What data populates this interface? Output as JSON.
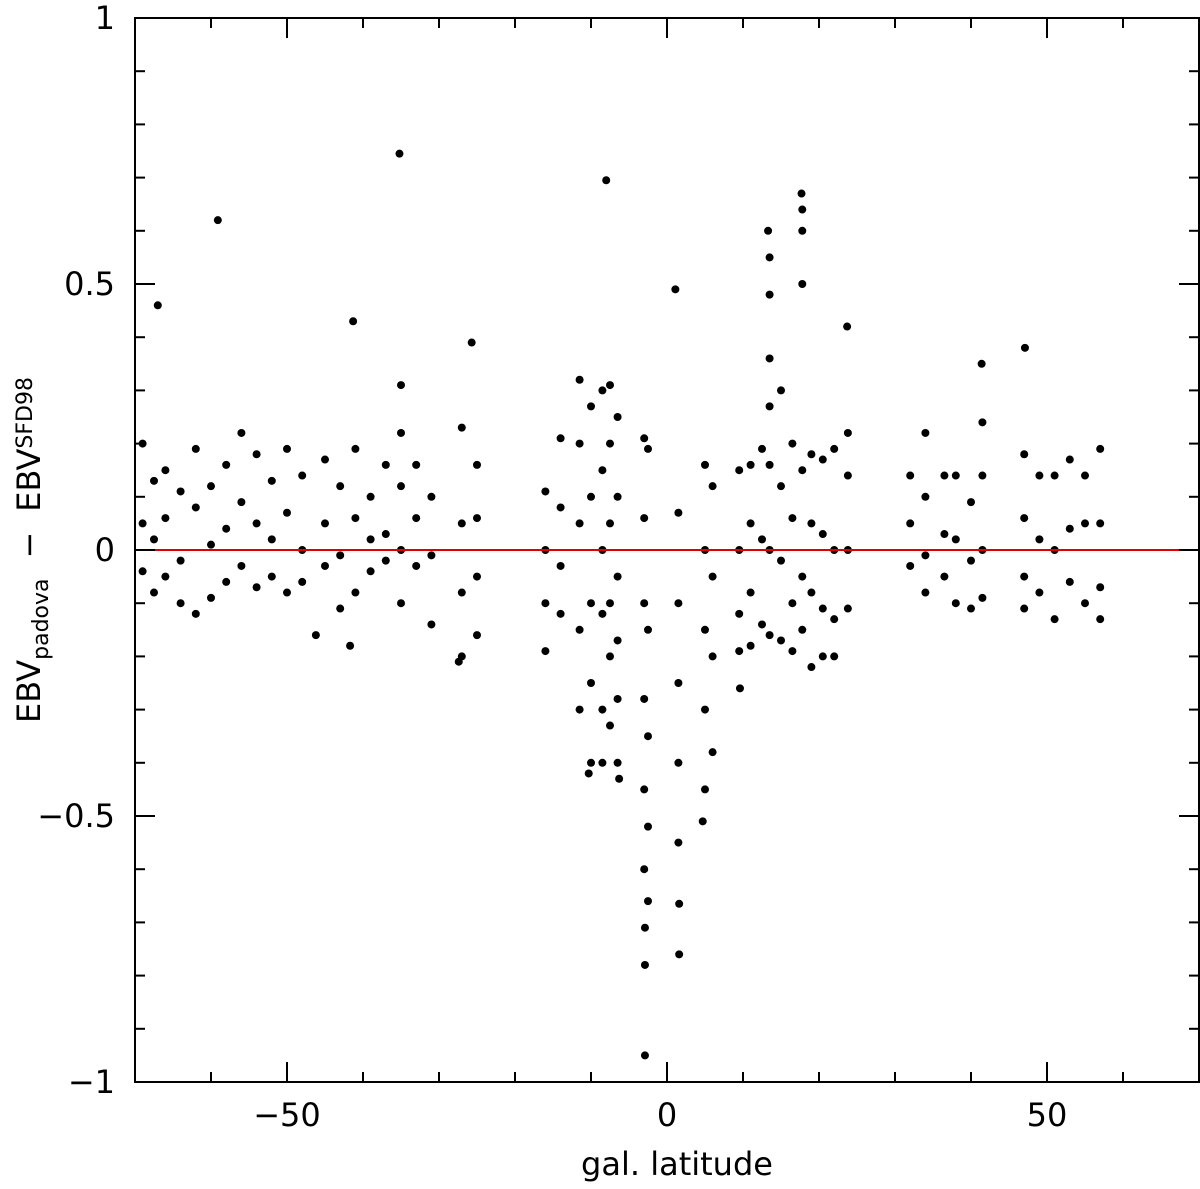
{
  "chart_data": {
    "type": "scatter",
    "xlabel": "gal. latitude",
    "ylabel": [
      "EBV",
      "padova",
      "−",
      "EBV",
      "SFD98"
    ],
    "xlim": [
      -70,
      70
    ],
    "ylim": [
      -1,
      1
    ],
    "xticks": [
      {
        "value": -50,
        "label": "−50"
      },
      0,
      50
    ],
    "yticks": [
      {
        "value": -1,
        "label": "−1"
      },
      {
        "value": -0.5,
        "label": "−0.5"
      },
      0,
      0.5,
      1
    ],
    "xminorticks": [
      -70,
      -60,
      -40,
      -30,
      -20,
      -10,
      10,
      20,
      30,
      40,
      60,
      70
    ],
    "yminorticks": [
      -0.9,
      -0.8,
      -0.7,
      -0.6,
      -0.4,
      -0.3,
      -0.2,
      -0.1,
      0.1,
      0.2,
      0.3,
      0.4,
      0.6,
      0.7,
      0.8,
      0.9
    ],
    "color": "#000000",
    "hline": {
      "value": 0,
      "color": "#e00000"
    },
    "x": [
      -69,
      -69,
      -69,
      -67.5,
      -67.5,
      -67.5,
      -66,
      -66,
      -66,
      -64,
      -64,
      -64,
      -62,
      -62,
      -62,
      -60,
      -60,
      -60,
      -58,
      -58,
      -58,
      -56,
      -56,
      -56,
      -54,
      -54,
      -54,
      -52,
      -52,
      -52,
      -50,
      -50,
      -50,
      -48,
      -48,
      -48,
      -45,
      -45,
      -45,
      -43,
      -43,
      -43,
      -41,
      -41,
      -41,
      -39,
      -39,
      -39,
      -37,
      -37,
      -37,
      -35,
      -35,
      -35,
      -35,
      -35,
      -33,
      -33,
      -33,
      -31,
      -31,
      -31,
      -27,
      -27,
      -27,
      -27,
      -25,
      -25,
      -25,
      -25,
      -16,
      -16,
      -16,
      -16,
      -14,
      -14,
      -14,
      -14,
      -11.5,
      -11.5,
      -11.5,
      -11.5,
      -11.5,
      -10,
      -10,
      -10,
      -10,
      -10,
      -8.5,
      -8.5,
      -8.5,
      -8.5,
      -8.5,
      -8.5,
      -7.5,
      -7.5,
      -7.5,
      -7.5,
      -7.5,
      -7.5,
      -6.5,
      -6.5,
      -6.5,
      -6.5,
      -6.5,
      -6.5,
      -3,
      -3,
      -3,
      -3,
      -3,
      -3,
      -2.5,
      -2.5,
      -2.5,
      -2.5,
      -2.5,
      1.5,
      1.5,
      1.5,
      1.5,
      1.5,
      5,
      5,
      5,
      5,
      5,
      6,
      6,
      6,
      6,
      9.5,
      9.5,
      9.5,
      9.5,
      11,
      11,
      11,
      11,
      12.5,
      12.5,
      12.5,
      13.5,
      13.5,
      13.5,
      13.5,
      13.5,
      13.5,
      13.5,
      15,
      15,
      15,
      15,
      16.5,
      16.5,
      16.5,
      16.5,
      17.8,
      17.8,
      17.8,
      17.8,
      17.8,
      17.8,
      19,
      19,
      19,
      19,
      20.5,
      20.5,
      20.5,
      20.5,
      22,
      22,
      22,
      22,
      23.8,
      23.8,
      23.8,
      23.8,
      32,
      32,
      32,
      34,
      34,
      34,
      34,
      36.5,
      36.5,
      36.5,
      38,
      38,
      38,
      40,
      40,
      40,
      41.5,
      41.5,
      41.5,
      41.5,
      47,
      47,
      47,
      47,
      49,
      49,
      49,
      51,
      51,
      51,
      53,
      53,
      53,
      55,
      55,
      55,
      57,
      57,
      57,
      57,
      -8,
      13.3,
      17.7,
      1.1,
      23.7,
      41.4,
      47.1,
      -35.2,
      -59.1,
      -67,
      -41.3,
      -25.7,
      -2.9,
      -2.9,
      1.6,
      1.6,
      -2.9,
      9.6,
      -10.3,
      -6.3,
      4.7,
      -41.7,
      -46.2,
      -27.4
    ],
    "y": [
      0.2,
      0.05,
      -0.04,
      0.13,
      0.02,
      -0.08,
      0.15,
      0.06,
      -0.05,
      0.11,
      -0.02,
      -0.1,
      0.19,
      0.08,
      -0.12,
      0.12,
      0.01,
      -0.09,
      0.16,
      0.04,
      -0.06,
      0.22,
      0.09,
      -0.03,
      0.18,
      0.05,
      -0.07,
      0.13,
      0.02,
      -0.05,
      0.19,
      0.07,
      -0.08,
      0.14,
      0,
      -0.06,
      0.17,
      0.05,
      -0.03,
      0.12,
      -0.01,
      -0.11,
      0.19,
      0.06,
      -0.08,
      0.1,
      0.02,
      -0.04,
      0.16,
      0.03,
      -0.02,
      0.31,
      0.22,
      0.12,
      0,
      -0.1,
      0.16,
      0.06,
      -0.03,
      0.1,
      -0.01,
      -0.14,
      0.23,
      0.05,
      -0.08,
      -0.2,
      0.16,
      0.06,
      -0.05,
      -0.16,
      0.11,
      0,
      -0.1,
      -0.19,
      0.21,
      0.08,
      -0.03,
      -0.12,
      0.32,
      0.2,
      0.05,
      -0.15,
      -0.3,
      0.27,
      0.1,
      -0.1,
      -0.25,
      -0.4,
      0.3,
      0.15,
      0,
      -0.12,
      -0.3,
      -0.4,
      0.31,
      0.2,
      0.05,
      -0.1,
      -0.2,
      -0.33,
      0.25,
      0.1,
      -0.05,
      -0.17,
      -0.28,
      -0.4,
      0.21,
      0.06,
      -0.1,
      -0.28,
      -0.45,
      -0.6,
      0.19,
      -0.15,
      -0.35,
      -0.52,
      -0.66,
      0.07,
      -0.1,
      -0.25,
      -0.4,
      -0.55,
      0.16,
      0,
      -0.15,
      -0.3,
      -0.45,
      0.12,
      -0.05,
      -0.2,
      -0.38,
      0.15,
      0,
      -0.12,
      -0.19,
      0.16,
      0.05,
      -0.08,
      -0.18,
      0.19,
      0.02,
      -0.14,
      0.55,
      0.48,
      0.36,
      0.27,
      0.16,
      0,
      -0.16,
      0.3,
      0.12,
      -0.02,
      -0.17,
      0.2,
      0.06,
      -0.1,
      -0.19,
      0.64,
      0.6,
      0.5,
      0.15,
      -0.05,
      -0.15,
      0.18,
      0.05,
      -0.08,
      -0.22,
      0.17,
      0.03,
      -0.11,
      -0.2,
      0.19,
      0,
      -0.13,
      -0.2,
      0.22,
      0.14,
      0,
      -0.11,
      0.14,
      0.05,
      -0.03,
      0.22,
      0.1,
      -0.01,
      -0.08,
      0.14,
      0.03,
      -0.05,
      0.14,
      0.02,
      -0.1,
      0.09,
      -0.02,
      -0.11,
      0.24,
      0.14,
      0,
      -0.09,
      0.18,
      0.06,
      -0.05,
      -0.11,
      0.14,
      0.02,
      -0.08,
      0.14,
      0,
      -0.13,
      0.17,
      0.04,
      -0.06,
      0.14,
      0.05,
      -0.1,
      0.19,
      0.05,
      -0.07,
      -0.13,
      0.695,
      0.6,
      0.67,
      0.49,
      0.42,
      0.35,
      0.38,
      0.745,
      0.62,
      0.46,
      0.43,
      0.39,
      -0.95,
      -0.78,
      -0.76,
      -0.665,
      -0.71,
      -0.26,
      -0.42,
      -0.43,
      -0.51,
      -0.18,
      -0.16,
      -0.21
    ]
  }
}
